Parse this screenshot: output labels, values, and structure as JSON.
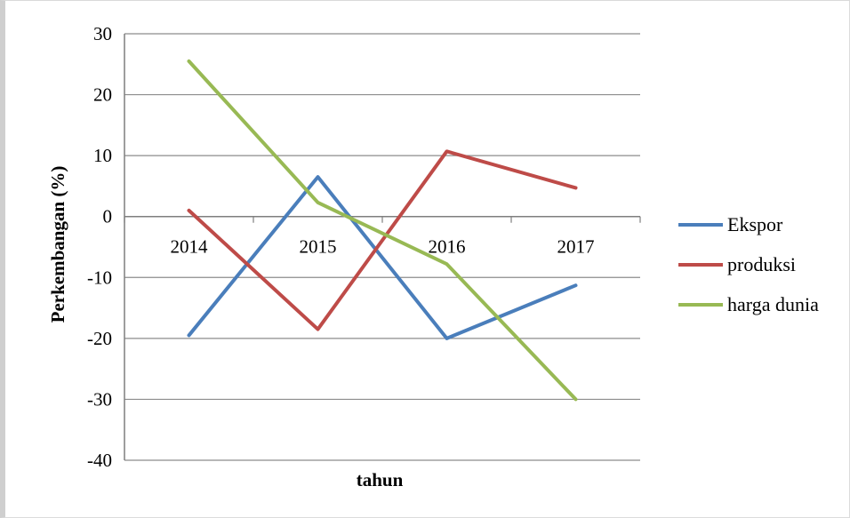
{
  "chart_data": {
    "type": "line",
    "categories": [
      "2014",
      "2015",
      "2016",
      "2017"
    ],
    "series": [
      {
        "name": "Ekspor",
        "values": [
          -19.5,
          6.5,
          -20,
          -11.3
        ],
        "color": "#4a7ebb"
      },
      {
        "name": "produksi",
        "values": [
          1,
          -18.5,
          10.7,
          4.7
        ],
        "color": "#be4b48"
      },
      {
        "name": "harga dunia",
        "values": [
          25.5,
          2.3,
          -7.8,
          -30
        ],
        "color": "#98b954"
      }
    ],
    "xlabel": "tahun",
    "ylabel": "Perkembangan (%)",
    "ylim": [
      -40,
      30
    ],
    "yticks": [
      "30",
      "20",
      "10",
      "0",
      "-10",
      "-20",
      "-30",
      "-40"
    ],
    "grid": true,
    "legend_position": "right"
  }
}
